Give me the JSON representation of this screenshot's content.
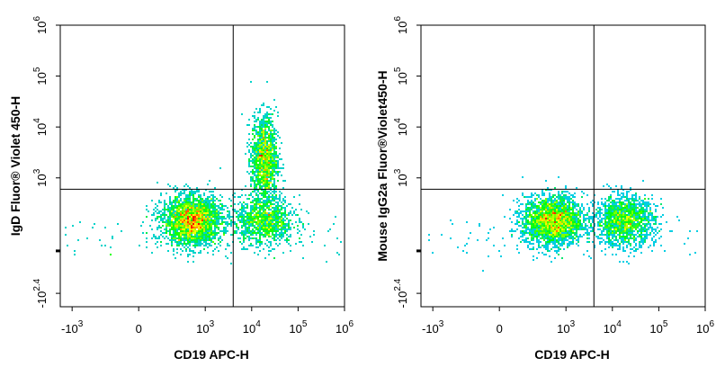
{
  "chart_data": [
    {
      "type": "scatter",
      "subtype": "flow-cytometry-density-dot-plot",
      "xlabel": "CD19 APC-H",
      "ylabel": "IgD Fluor® Violet 450-H",
      "x_scale": "biexponential",
      "y_scale": "biexponential",
      "x_ticks": [
        {
          "base": "-10",
          "exp": "3",
          "value": -1000
        },
        {
          "base": "0",
          "exp": "",
          "value": 0
        },
        {
          "base": "10",
          "exp": "3",
          "value": 1000
        },
        {
          "base": "10",
          "exp": "4",
          "value": 10000
        },
        {
          "base": "10",
          "exp": "5",
          "value": 100000
        },
        {
          "base": "10",
          "exp": "6",
          "value": 1000000
        }
      ],
      "y_ticks": [
        {
          "base": "-10",
          "exp": "2.4",
          "value": -251
        },
        {
          "base": "10",
          "exp": "3",
          "value": 1000
        },
        {
          "base": "10",
          "exp": "4",
          "value": 10000
        },
        {
          "base": "10",
          "exp": "5",
          "value": 100000
        },
        {
          "base": "10",
          "exp": "6",
          "value": 1000000
        }
      ],
      "gate_x": 4000,
      "gate_y": 600,
      "populations": [
        {
          "x_center": 500,
          "y_center": 150,
          "relative_density": 1.0
        },
        {
          "x_center": 18000,
          "y_center": 2500,
          "relative_density": 0.55
        },
        {
          "x_center": 18000,
          "y_center": 150,
          "relative_density": 0.45
        }
      ]
    },
    {
      "type": "scatter",
      "subtype": "flow-cytometry-density-dot-plot",
      "xlabel": "CD19 APC-H",
      "ylabel": "Mouse IgG2a Fluor®Violet450-H",
      "x_scale": "biexponential",
      "y_scale": "biexponential",
      "x_ticks": [
        {
          "base": "-10",
          "exp": "3",
          "value": -1000
        },
        {
          "base": "0",
          "exp": "",
          "value": 0
        },
        {
          "base": "10",
          "exp": "3",
          "value": 1000
        },
        {
          "base": "10",
          "exp": "4",
          "value": 10000
        },
        {
          "base": "10",
          "exp": "5",
          "value": 100000
        },
        {
          "base": "10",
          "exp": "6",
          "value": 1000000
        }
      ],
      "y_ticks": [
        {
          "base": "-10",
          "exp": "2.4",
          "value": -251
        },
        {
          "base": "10",
          "exp": "3",
          "value": 1000
        },
        {
          "base": "10",
          "exp": "4",
          "value": 10000
        },
        {
          "base": "10",
          "exp": "5",
          "value": 100000
        },
        {
          "base": "10",
          "exp": "6",
          "value": 1000000
        }
      ],
      "gate_x": 4000,
      "gate_y": 600,
      "populations": [
        {
          "x_center": 500,
          "y_center": 150,
          "relative_density": 1.0
        },
        {
          "x_center": 18000,
          "y_center": 150,
          "relative_density": 0.6
        }
      ]
    }
  ],
  "colors": {
    "density_low": "#0000ff",
    "density_mid": "#00ff00",
    "density_high": "#ff0000",
    "axis": "#000000"
  }
}
